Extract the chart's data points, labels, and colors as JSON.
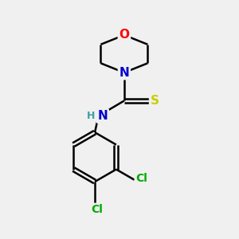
{
  "bg_color": "#f0f0f0",
  "bond_color": "#000000",
  "bond_width": 1.8,
  "atom_colors": {
    "O": "#ff0000",
    "N": "#0000cd",
    "S": "#cccc00",
    "Cl": "#00aa00",
    "H": "#40a0a0",
    "C": "#000000"
  },
  "font_size": 10,
  "figsize": [
    3.0,
    3.0
  ],
  "dpi": 100
}
